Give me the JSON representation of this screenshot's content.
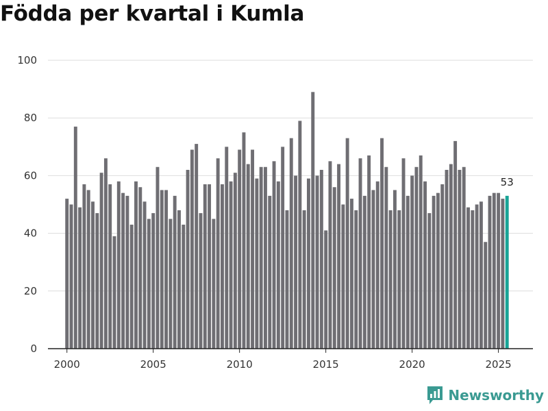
{
  "title": "Födda per kvartal i Kumla",
  "brand": "Newsworthy",
  "colors": {
    "bar": "#6f6e73",
    "highlight": "#18a496",
    "grid": "#dddddd",
    "axis": "#222222",
    "brand": "#3a9a92"
  },
  "chart_data": {
    "type": "bar",
    "title": "Födda per kvartal i Kumla",
    "xlabel": "",
    "ylabel": "",
    "x_start": 2000,
    "quarters_per_year": 4,
    "xlim": [
      1998.9,
      2027.0
    ],
    "ylim": [
      0,
      100
    ],
    "yticks": [
      0,
      20,
      40,
      60,
      80,
      100
    ],
    "xticks": [
      2000,
      2005,
      2010,
      2015,
      2020,
      2025
    ],
    "values": [
      52,
      50,
      77,
      49,
      57,
      55,
      51,
      47,
      61,
      66,
      57,
      39,
      58,
      54,
      53,
      43,
      58,
      56,
      51,
      45,
      47,
      63,
      55,
      55,
      45,
      53,
      48,
      43,
      62,
      69,
      71,
      47,
      57,
      57,
      45,
      66,
      57,
      70,
      58,
      61,
      69,
      75,
      64,
      69,
      59,
      63,
      63,
      53,
      65,
      58,
      70,
      48,
      73,
      60,
      79,
      48,
      59,
      89,
      60,
      62,
      41,
      65,
      56,
      64,
      50,
      73,
      52,
      48,
      66,
      53,
      67,
      55,
      58,
      73,
      63,
      48,
      55,
      48,
      66,
      53,
      60,
      63,
      67,
      58,
      47,
      53,
      54,
      57,
      62,
      64,
      72,
      62,
      63,
      49,
      48,
      50,
      51,
      37,
      53,
      54,
      54,
      52,
      53
    ],
    "highlight_last": true,
    "last_label": "53",
    "grid": true
  }
}
